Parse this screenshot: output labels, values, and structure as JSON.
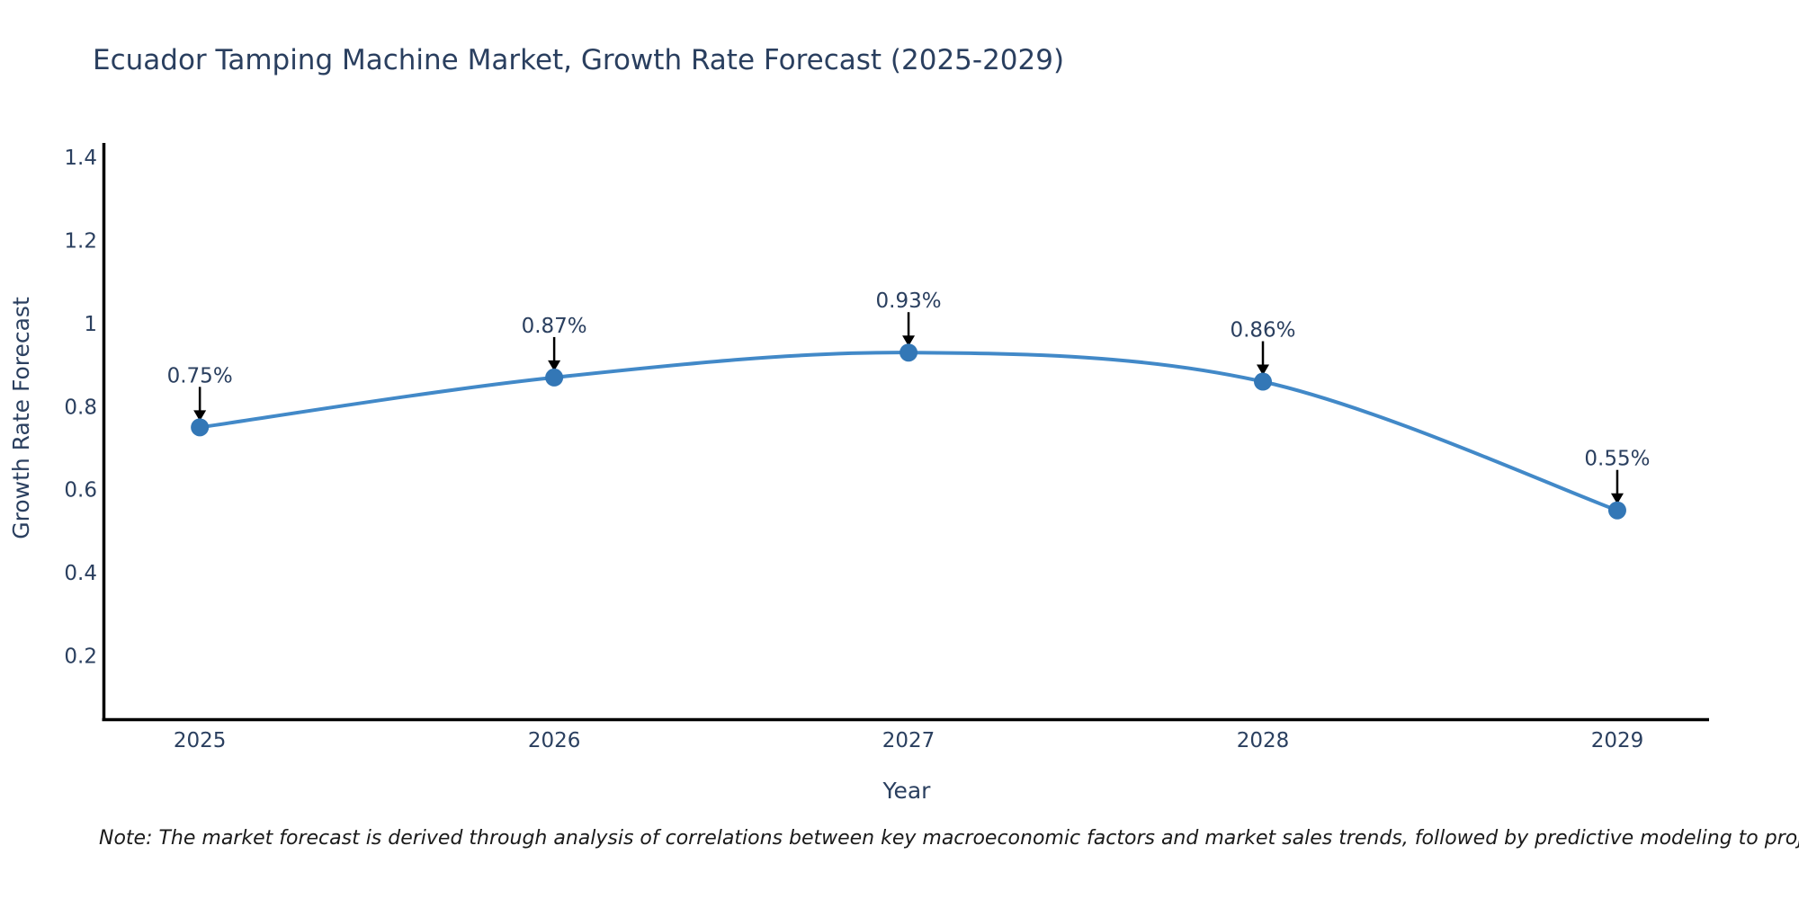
{
  "title": "Ecuador Tamping Machine Market, Growth Rate Forecast (2025-2029)",
  "note": "Note: The market forecast is derived through analysis of correlations between key macroeconomic factors and market sales trends, followed by predictive modeling to project future sales",
  "chart_data": {
    "type": "line",
    "title": "Ecuador Tamping Machine Market, Growth Rate Forecast (2025-2029)",
    "xlabel": "Year",
    "ylabel": "Growth Rate Forecast",
    "x": [
      2025,
      2026,
      2027,
      2028,
      2029
    ],
    "series": [
      {
        "name": "Growth Rate Forecast",
        "values": [
          0.75,
          0.87,
          0.93,
          0.86,
          0.55
        ]
      }
    ],
    "point_labels": [
      "0.75%",
      "0.87%",
      "0.93%",
      "0.86%",
      "0.55%"
    ],
    "x_tick_labels": [
      "2025",
      "2026",
      "2027",
      "2028",
      "2029"
    ],
    "y_ticks": [
      0.2,
      0.4,
      0.6,
      0.8,
      1,
      1.2,
      1.4
    ],
    "y_tick_labels": [
      "0.2",
      "0.4",
      "0.6",
      "0.8",
      "1",
      "1.2",
      "1.4"
    ],
    "xlim": [
      2024.728,
      2029.259
    ],
    "ylim": [
      0.047,
      1.435
    ],
    "line_shape": "spline",
    "grid": false,
    "legend_position": "none",
    "annotation_arrows": true,
    "colors": {
      "line": "#4289c8",
      "marker": "#3377b6",
      "arrow": "#000000",
      "axis_line": "#000000",
      "text": "#2a3f5f",
      "background": "#ffffff"
    }
  }
}
